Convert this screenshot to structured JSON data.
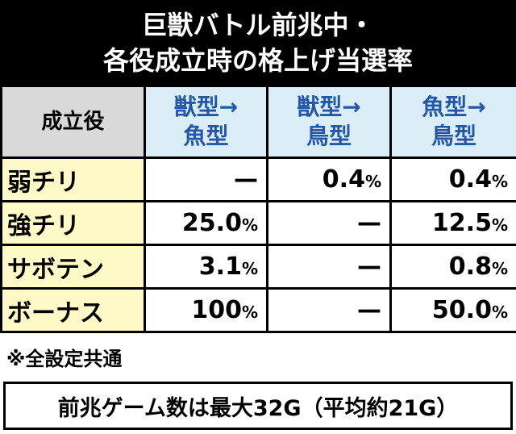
{
  "title": [
    "巨獣バトル前兆中・",
    "各役成立時の格上げ当選率"
  ],
  "table": {
    "header": [
      [
        "成立役"
      ],
      [
        "獣型→",
        "魚型"
      ],
      [
        "獣型→",
        "鳥型"
      ],
      [
        "魚型→",
        "鳥型"
      ]
    ],
    "rows": [
      [
        "弱チリ",
        "—",
        "0.4%",
        "0.4%"
      ],
      [
        "強チリ",
        "25.0%",
        "—",
        "12.5%"
      ],
      [
        "サボテン",
        "3.1%",
        "—",
        "0.8%"
      ],
      [
        "ボーナス",
        "100%",
        "—",
        "50.0%"
      ]
    ]
  },
  "note": "※全設定共通",
  "footer": "前兆ゲーム数は最大32G（平均約21G）"
}
